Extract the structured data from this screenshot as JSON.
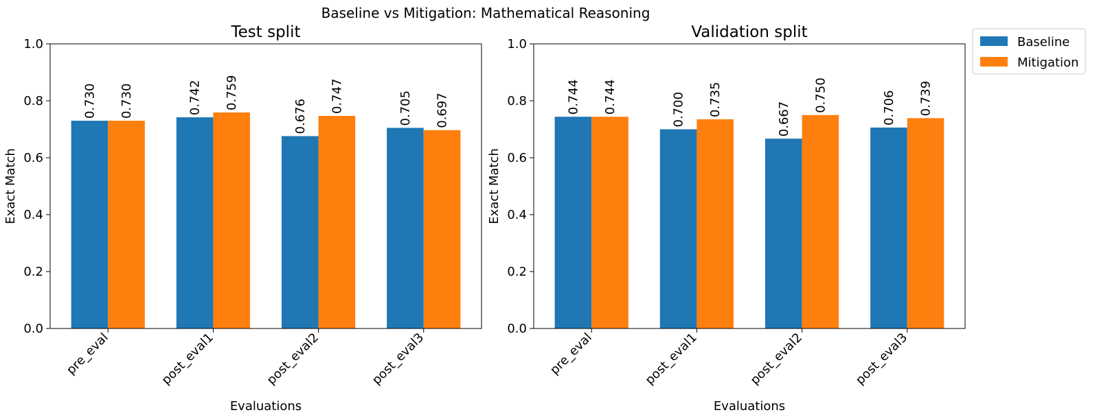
{
  "figure": {
    "suptitle": "Baseline vs Mitigation: Mathematical Reasoning"
  },
  "legend": {
    "placement": "outside-top-right",
    "items": [
      {
        "label": "Baseline",
        "color": "#1f77b4"
      },
      {
        "label": "Mitigation",
        "color": "#ff7f0e"
      }
    ]
  },
  "chart_data": [
    {
      "type": "bar",
      "title": "Test split",
      "xlabel": "Evaluations",
      "ylabel": "Exact Match",
      "ylim": [
        0,
        1.0
      ],
      "yticks": [
        "0.0",
        "0.2",
        "0.4",
        "0.6",
        "0.8",
        "1.0"
      ],
      "grid": false,
      "categories": [
        "pre_eval",
        "post_eval1",
        "post_eval2",
        "post_eval3"
      ],
      "series": [
        {
          "name": "Baseline",
          "color": "#1f77b4",
          "values": [
            0.73,
            0.742,
            0.676,
            0.705
          ],
          "labels": [
            "0.730",
            "0.742",
            "0.676",
            "0.705"
          ]
        },
        {
          "name": "Mitigation",
          "color": "#ff7f0e",
          "values": [
            0.73,
            0.759,
            0.747,
            0.697
          ],
          "labels": [
            "0.730",
            "0.759",
            "0.747",
            "0.697"
          ]
        }
      ]
    },
    {
      "type": "bar",
      "title": "Validation split",
      "xlabel": "Evaluations",
      "ylabel": "Exact Match",
      "ylim": [
        0,
        1.0
      ],
      "yticks": [
        "0.0",
        "0.2",
        "0.4",
        "0.6",
        "0.8",
        "1.0"
      ],
      "grid": false,
      "categories": [
        "pre_eval",
        "post_eval1",
        "post_eval2",
        "post_eval3"
      ],
      "series": [
        {
          "name": "Baseline",
          "color": "#1f77b4",
          "values": [
            0.744,
            0.7,
            0.667,
            0.706
          ],
          "labels": [
            "0.744",
            "0.700",
            "0.667",
            "0.706"
          ]
        },
        {
          "name": "Mitigation",
          "color": "#ff7f0e",
          "values": [
            0.744,
            0.735,
            0.75,
            0.739
          ],
          "labels": [
            "0.744",
            "0.735",
            "0.750",
            "0.739"
          ]
        }
      ]
    }
  ]
}
